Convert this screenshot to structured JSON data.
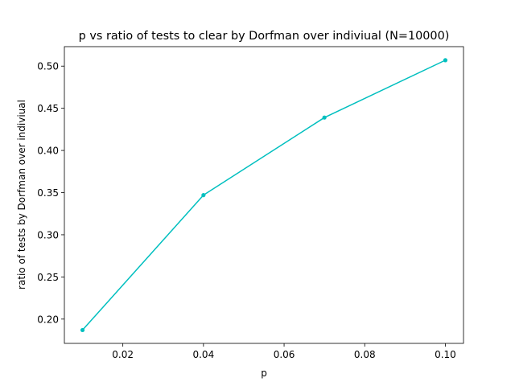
{
  "chart_data": {
    "type": "line",
    "title": "p vs ratio of tests to clear by Dorfman over indiviual (N=10000)",
    "xlabel": "p",
    "ylabel": "ratio of tests by Dorfman over indiviual",
    "xlim": [
      0.0055,
      0.1045
    ],
    "ylim": [
      0.1712,
      0.5231
    ],
    "xticks": [
      0.02,
      0.04,
      0.06,
      0.08,
      0.1
    ],
    "xtick_labels": [
      "0.02",
      "0.04",
      "0.06",
      "0.08",
      "0.10"
    ],
    "yticks": [
      0.2,
      0.25,
      0.3,
      0.35,
      0.4,
      0.45,
      0.5
    ],
    "ytick_labels": [
      "0.20",
      "0.25",
      "0.30",
      "0.35",
      "0.40",
      "0.45",
      "0.50"
    ],
    "grid": false,
    "series": [
      {
        "color": "#00bfbf",
        "marker": "circle",
        "x": [
          0.01,
          0.04,
          0.07,
          0.1
        ],
        "y": [
          0.187,
          0.347,
          0.439,
          0.507
        ]
      }
    ]
  }
}
